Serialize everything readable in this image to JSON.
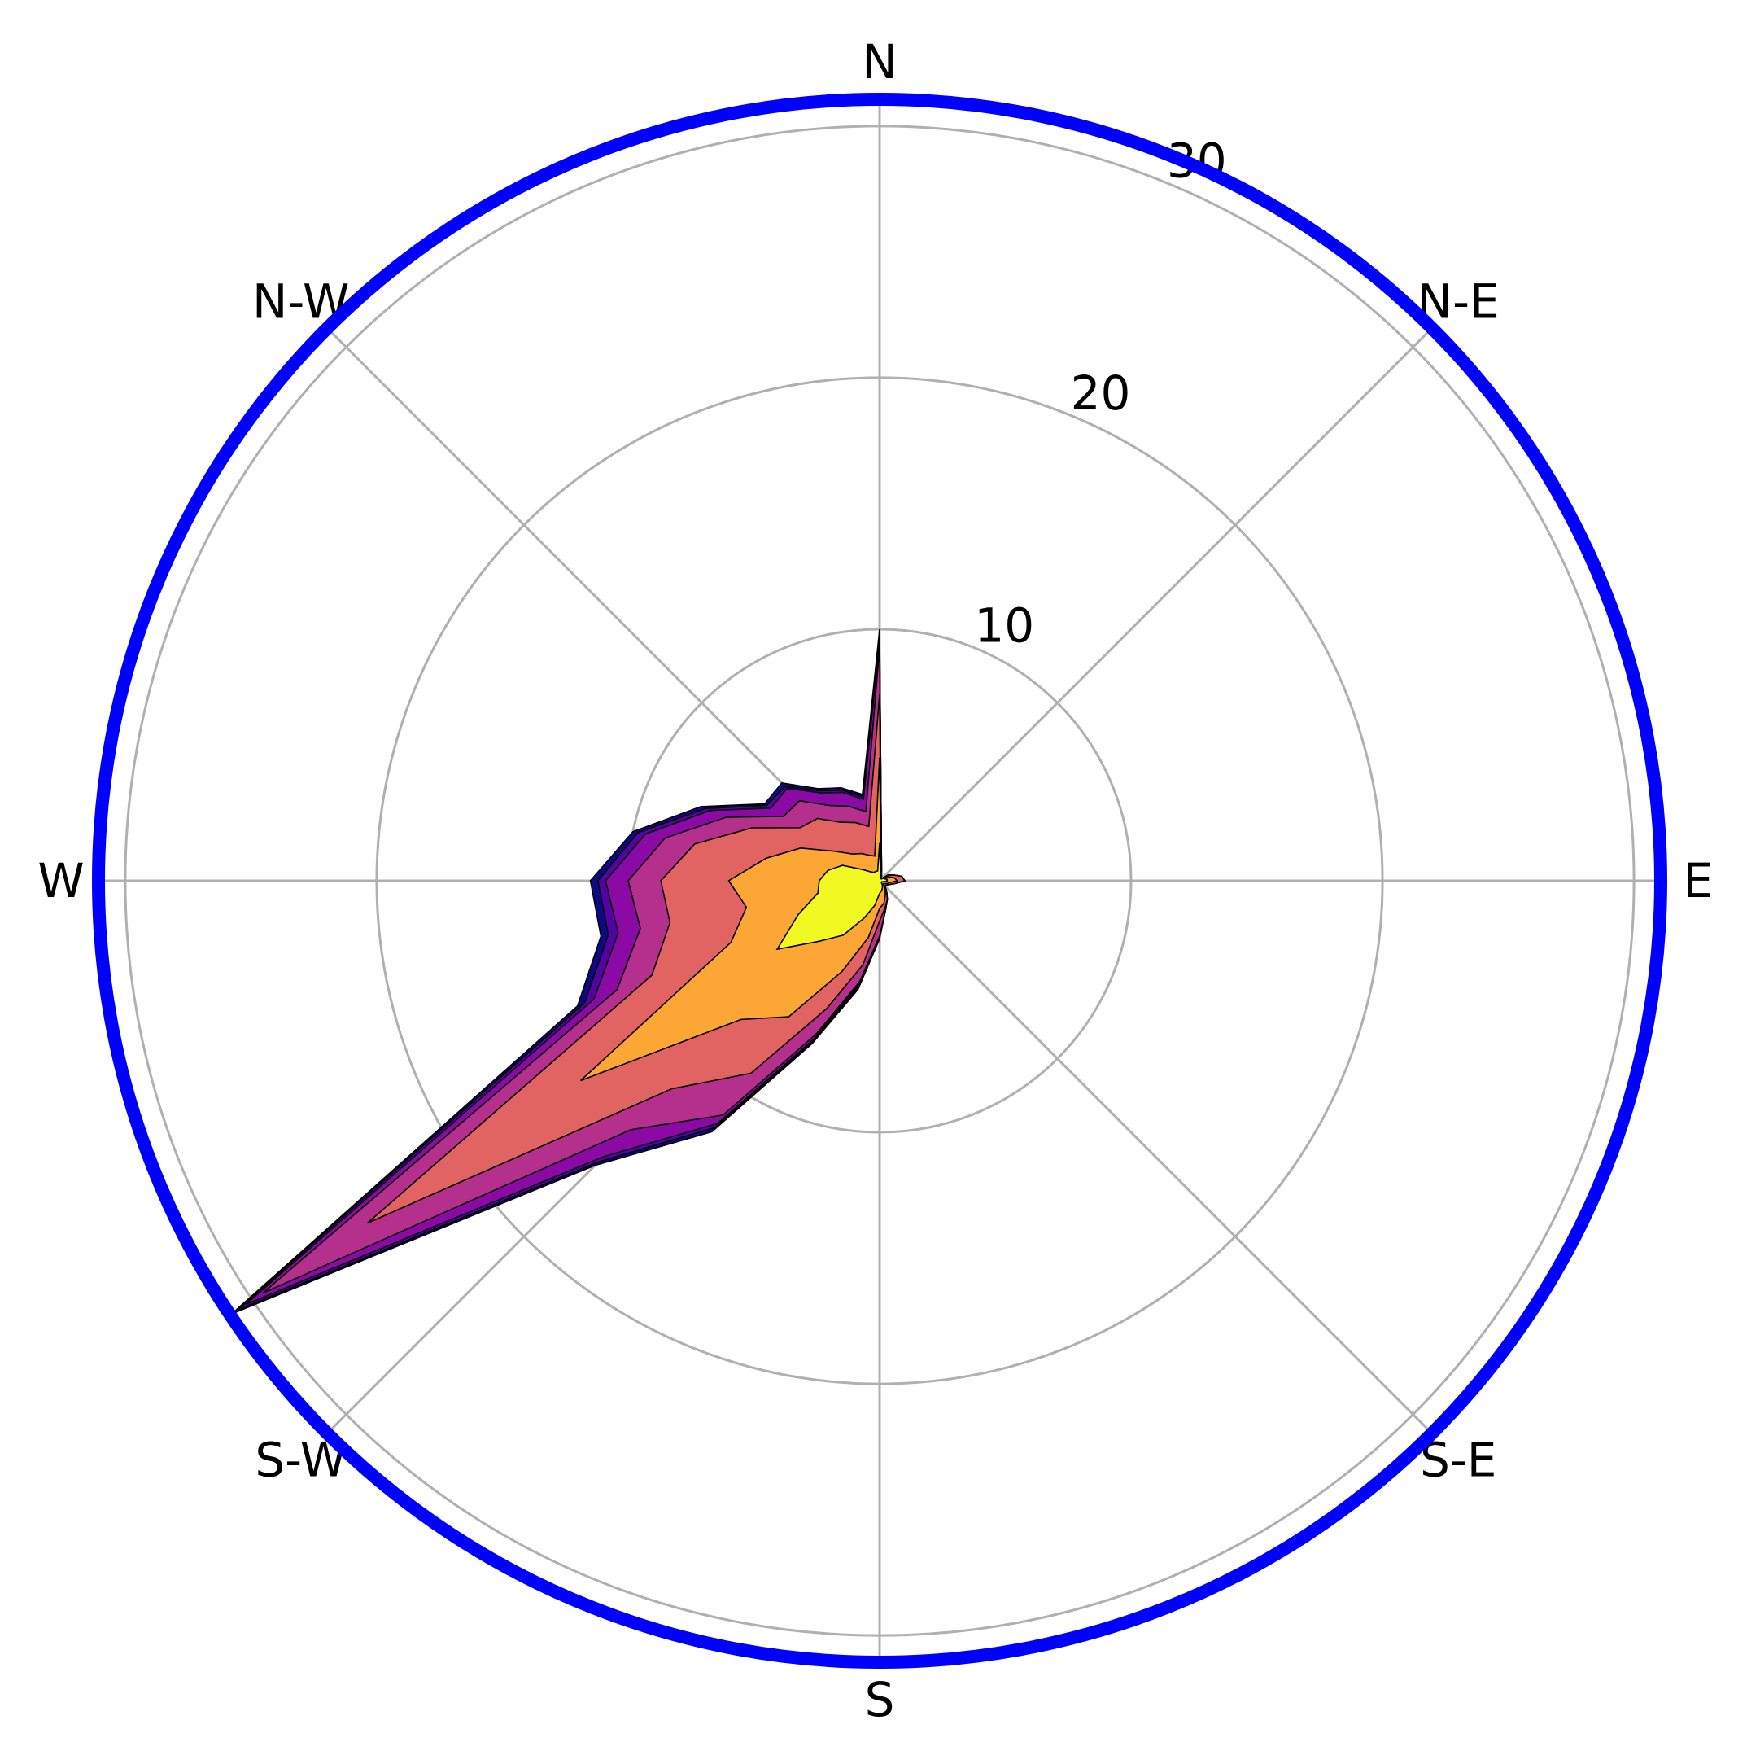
{
  "chart_data": {
    "type": "area",
    "subtype": "windrose",
    "directions": [
      "N",
      "N-E",
      "E",
      "S-E",
      "S",
      "S-W",
      "W",
      "N-W"
    ],
    "angles_deg": [
      0,
      11.25,
      22.5,
      33.75,
      45,
      56.25,
      67.5,
      78.75,
      90,
      101.25,
      112.5,
      123.75,
      135,
      146.25,
      157.5,
      168.75,
      180,
      191.25,
      202.5,
      213.75,
      225,
      236.25,
      247.5,
      258.75,
      270,
      281.25,
      292.5,
      303.75,
      315,
      326.25,
      337.5,
      348.75
    ],
    "radial_ticks": [
      10,
      20,
      30
    ],
    "rmax": 31,
    "grid": true,
    "frame_color": "#0000ff",
    "grid_color": "#b0b0b0",
    "series": [
      {
        "color": "#0d0887",
        "values": [
          10.0,
          0.4,
          0.2,
          0.1,
          0.1,
          0.4,
          0.6,
          0.9,
          1.0,
          0.6,
          0.4,
          0.3,
          0.3,
          0.5,
          0.8,
          1.2,
          2.3,
          4.4,
          7.0,
          12.0,
          16.0,
          31.0,
          13.0,
          11.3,
          11.5,
          10.0,
          7.7,
          5.5,
          5.5,
          4.4,
          4.0,
          3.5
        ]
      },
      {
        "color": "#5402a3",
        "values": [
          9.8,
          0.4,
          0.2,
          0.1,
          0.1,
          0.4,
          0.6,
          0.9,
          1.0,
          0.6,
          0.4,
          0.3,
          0.3,
          0.5,
          0.8,
          1.2,
          2.3,
          4.3,
          6.9,
          11.8,
          15.8,
          30.7,
          12.7,
          11.0,
          11.2,
          9.8,
          7.5,
          5.4,
          5.3,
          4.3,
          3.9,
          3.4
        ]
      },
      {
        "color": "#8b0aa5",
        "values": [
          9.6,
          0.4,
          0.2,
          0.1,
          0.1,
          0.4,
          0.6,
          0.9,
          1.0,
          0.6,
          0.4,
          0.3,
          0.3,
          0.5,
          0.8,
          1.2,
          2.2,
          4.2,
          6.8,
          11.6,
          15.5,
          30.3,
          12.3,
          10.6,
          10.9,
          9.5,
          7.3,
          5.2,
          5.2,
          4.2,
          3.8,
          3.3
        ]
      },
      {
        "color": "#b52f8c",
        "values": [
          9.3,
          0.4,
          0.2,
          0.1,
          0.1,
          0.4,
          0.6,
          0.9,
          1.0,
          0.6,
          0.4,
          0.3,
          0.3,
          0.5,
          0.8,
          1.2,
          2.2,
          4.1,
          6.6,
          11.2,
          14.0,
          29.5,
          11.3,
          9.7,
          10.0,
          8.7,
          6.6,
          4.6,
          4.5,
          3.6,
          3.2,
          2.8
        ]
      },
      {
        "color": "#e16462",
        "values": [
          7.4,
          0.3,
          0.2,
          0.1,
          0.1,
          0.4,
          0.6,
          0.9,
          1.0,
          0.6,
          0.4,
          0.3,
          0.3,
          0.5,
          0.8,
          1.1,
          1.6,
          3.4,
          5.5,
          9.2,
          11.7,
          24.5,
          9.8,
          8.5,
          8.7,
          7.5,
          5.5,
          3.8,
          3.5,
          2.8,
          2.5,
          2.2
        ]
      },
      {
        "color": "#fca636",
        "values": [
          4.9,
          0.3,
          0.2,
          0.1,
          0.1,
          0.3,
          0.4,
          0.6,
          0.7,
          0.4,
          0.3,
          0.2,
          0.2,
          0.4,
          0.6,
          0.9,
          1.1,
          2.3,
          3.9,
          6.5,
          7.8,
          14.3,
          6.4,
          5.4,
          6.0,
          4.6,
          3.4,
          2.1,
          1.5,
          1.3,
          1.1,
          1.0
        ]
      },
      {
        "color": "#f0f921",
        "values": [
          1.5,
          0.2,
          0.1,
          0.1,
          0.1,
          0.2,
          0.2,
          0.3,
          0.3,
          0.2,
          0.1,
          0.1,
          0.1,
          0.2,
          0.3,
          0.4,
          0.5,
          1.0,
          1.6,
          2.6,
          3.4,
          4.9,
          3.5,
          2.5,
          2.4,
          2.1,
          1.6,
          0.8,
          0.5,
          0.4,
          0.4,
          0.4
        ]
      }
    ]
  }
}
